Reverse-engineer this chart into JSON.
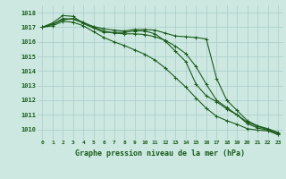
{
  "title": "Graphe pression niveau de la mer (hPa)",
  "x_labels": [
    "0",
    "1",
    "2",
    "3",
    "4",
    "5",
    "6",
    "7",
    "8",
    "9",
    "10",
    "11",
    "12",
    "13",
    "14",
    "15",
    "16",
    "17",
    "18",
    "19",
    "20",
    "21",
    "22",
    "23"
  ],
  "ylim": [
    1009.3,
    1018.5
  ],
  "yticks": [
    1010,
    1011,
    1012,
    1013,
    1014,
    1015,
    1016,
    1017,
    1018
  ],
  "bg_color": "#cce8e0",
  "grid_color": "#aacccc",
  "line_color": "#1a5c1a",
  "series": [
    [
      1017.0,
      1017.2,
      1017.5,
      1017.6,
      1017.35,
      1017.0,
      1016.75,
      1016.6,
      1016.55,
      1016.55,
      1016.5,
      1016.35,
      1016.1,
      1015.7,
      1015.2,
      1014.3,
      1013.1,
      1012.0,
      1011.5,
      1011.0,
      1010.5,
      1010.2,
      1010.0,
      1009.65
    ],
    [
      1017.0,
      1017.3,
      1017.8,
      1017.75,
      1017.25,
      1016.95,
      1016.65,
      1016.65,
      1016.65,
      1016.75,
      1016.75,
      1016.55,
      1016.05,
      1015.35,
      1014.65,
      1013.1,
      1012.3,
      1011.9,
      1011.4,
      1011.0,
      1010.4,
      1010.1,
      1009.95,
      1009.75
    ],
    [
      1017.0,
      1017.2,
      1017.6,
      1017.55,
      1017.3,
      1017.05,
      1016.9,
      1016.8,
      1016.75,
      1016.85,
      1016.85,
      1016.8,
      1016.6,
      1016.4,
      1016.35,
      1016.3,
      1016.2,
      1013.5,
      1012.0,
      1011.3,
      1010.6,
      1010.25,
      1010.05,
      1009.8
    ],
    [
      1017.0,
      1017.1,
      1017.4,
      1017.35,
      1017.1,
      1016.7,
      1016.3,
      1016.0,
      1015.75,
      1015.45,
      1015.15,
      1014.75,
      1014.2,
      1013.55,
      1012.9,
      1012.15,
      1011.45,
      1010.9,
      1010.6,
      1010.35,
      1010.05,
      1009.95,
      1009.9,
      1009.65
    ]
  ]
}
